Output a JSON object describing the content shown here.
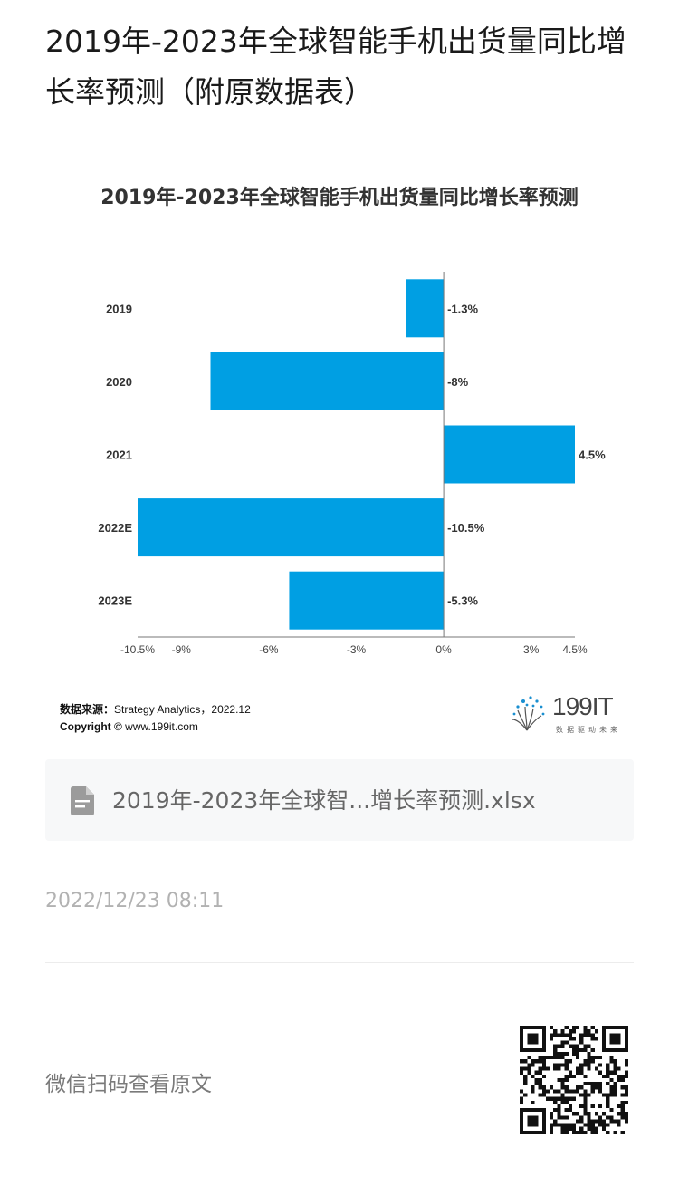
{
  "page": {
    "title": "2019年-2023年全球智能手机出货量同比增长率预测（附原数据表）"
  },
  "chart_data": {
    "type": "bar",
    "orientation": "horizontal",
    "title": "2019年-2023年全球智能手机出货量同比增长率预测",
    "categories": [
      "2019",
      "2020",
      "2021",
      "2022E",
      "2023E"
    ],
    "values": [
      -1.3,
      -8,
      4.5,
      -10.5,
      -5.3
    ],
    "data_labels": [
      "-1.3%",
      "-8%",
      "4.5%",
      "-10.5%",
      "-5.3%"
    ],
    "xlim": [
      -10.5,
      4.5
    ],
    "x_ticks": [
      -10.5,
      -9,
      -6,
      -3,
      0,
      3,
      4.5
    ],
    "x_tick_labels": [
      "-10.5%",
      "-9%",
      "-6%",
      "-3%",
      "0%",
      "3%",
      "4.5%"
    ],
    "bar_color": "#009fe3",
    "grid": false,
    "legend": "none"
  },
  "source": {
    "label": "数据来源：",
    "text": "Strategy Analytics，2022.12",
    "copyright_label": "Copyright ©",
    "copyright_text": " www.199it.com"
  },
  "logo": {
    "text": "199IT",
    "slogan": "数据驱动未来"
  },
  "attachment": {
    "icon": "file-icon",
    "name": "2019年-2023年全球智...增长率预测.xlsx"
  },
  "timestamp": "2022/12/23 08:11",
  "qr": {
    "caption": "微信扫码查看原文",
    "icon": "qr-code-icon"
  }
}
